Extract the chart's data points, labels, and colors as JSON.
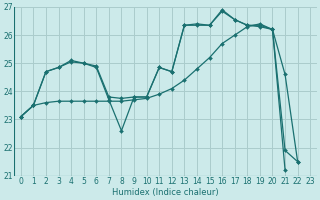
{
  "xlabel": "Humidex (Indice chaleur)",
  "background_color": "#cceaea",
  "grid_color": "#aacccc",
  "line_color": "#1a7070",
  "xlim": [
    -0.5,
    23.5
  ],
  "ylim": [
    21,
    27
  ],
  "yticks": [
    21,
    22,
    23,
    24,
    25,
    26,
    27
  ],
  "xticks": [
    0,
    1,
    2,
    3,
    4,
    5,
    6,
    7,
    8,
    9,
    10,
    11,
    12,
    13,
    14,
    15,
    16,
    17,
    18,
    19,
    20,
    21,
    22,
    23
  ],
  "series": [
    {
      "x": [
        0,
        1,
        2,
        3,
        4,
        5,
        6,
        7,
        8,
        9,
        10,
        11,
        12,
        13,
        14,
        15,
        16,
        17,
        18,
        19,
        20,
        21,
        22
      ],
      "y": [
        23.1,
        23.5,
        23.6,
        23.65,
        23.65,
        23.65,
        23.65,
        23.65,
        23.65,
        23.7,
        23.75,
        23.9,
        24.1,
        24.4,
        24.8,
        25.2,
        25.7,
        26.0,
        26.3,
        26.4,
        26.2,
        21.9,
        21.5
      ]
    },
    {
      "x": [
        0,
        1,
        2,
        3,
        4,
        5,
        6,
        7,
        8,
        9,
        10,
        11,
        12,
        13,
        14,
        15,
        16,
        17,
        18,
        19,
        20,
        21
      ],
      "y": [
        23.1,
        23.5,
        24.7,
        24.85,
        25.05,
        25.0,
        24.85,
        23.7,
        22.6,
        23.8,
        23.8,
        24.85,
        24.7,
        26.35,
        26.35,
        26.35,
        26.9,
        26.55,
        26.35,
        26.35,
        26.2,
        21.2
      ]
    },
    {
      "x": [
        0,
        1,
        2,
        3,
        4,
        5,
        6,
        7,
        8,
        9,
        10,
        11,
        12,
        13,
        14,
        15,
        16,
        17,
        18,
        19,
        20,
        21,
        22
      ],
      "y": [
        23.1,
        23.5,
        24.7,
        24.85,
        25.1,
        25.0,
        24.9,
        23.8,
        23.75,
        23.8,
        23.8,
        24.85,
        24.7,
        26.35,
        26.4,
        26.35,
        26.85,
        26.55,
        26.35,
        26.3,
        26.2,
        24.6,
        21.5
      ]
    }
  ]
}
